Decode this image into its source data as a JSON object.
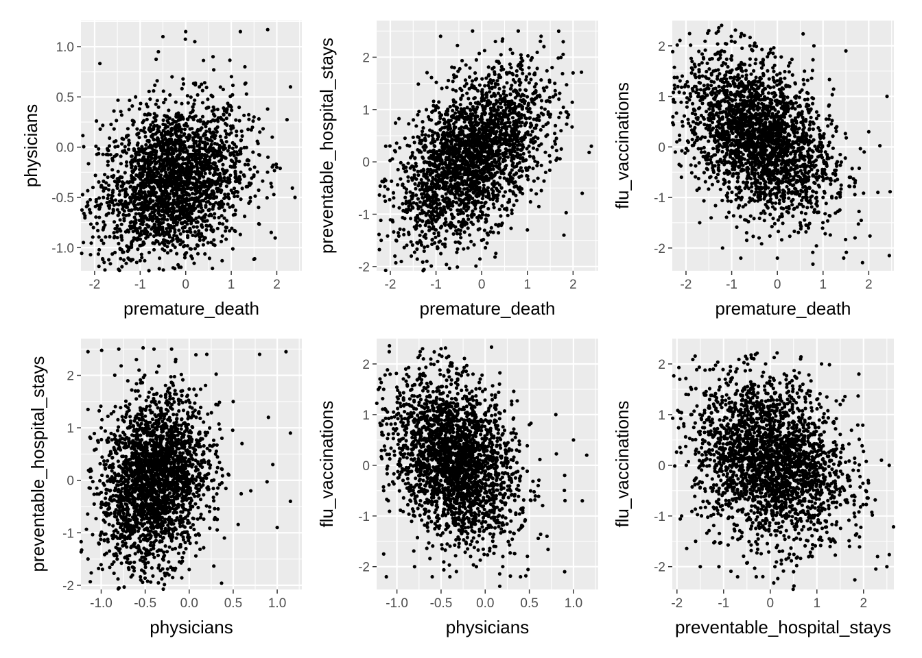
{
  "chart_data": [
    {
      "type": "scatter",
      "title": "",
      "xlabel": "premature_death",
      "ylabel": "physicians",
      "xlim": [
        -2.3,
        2.55
      ],
      "ylim": [
        -1.23,
        1.26
      ],
      "xticks": [
        -2,
        -1,
        0,
        1,
        2
      ],
      "xtick_labels": [
        "-2",
        "-1",
        "0",
        "1",
        "2"
      ],
      "yticks": [
        -1.0,
        -0.5,
        0.0,
        0.5,
        1.0
      ],
      "ytick_labels": [
        "-1.0",
        "-0.5",
        "0.0",
        "0.5",
        "1.0"
      ],
      "grid": true,
      "point_color": "#000000",
      "points": [
        [
          -2.15,
          -0.58
        ],
        [
          -1.8,
          -0.8
        ],
        [
          -1.6,
          -0.45
        ],
        [
          -1.4,
          -0.3
        ],
        [
          -1.3,
          0.1
        ],
        [
          -1.2,
          -1.13
        ],
        [
          -1.0,
          -1.13
        ],
        [
          -0.9,
          -1.13
        ],
        [
          -0.6,
          0.95
        ],
        [
          -0.5,
          1.1
        ],
        [
          -0.3,
          0.7
        ],
        [
          0.0,
          1.15
        ],
        [
          0.2,
          1.05
        ],
        [
          0.4,
          -0.2
        ],
        [
          0.6,
          0.9
        ],
        [
          0.8,
          -1.13
        ],
        [
          1.0,
          0.4
        ],
        [
          1.2,
          1.15
        ],
        [
          1.5,
          0.3
        ],
        [
          1.8,
          1.17
        ],
        [
          2.0,
          -0.2
        ],
        [
          2.3,
          0.6
        ],
        [
          2.4,
          -0.5
        ],
        [
          -1.1,
          0.5
        ],
        [
          -0.8,
          -0.6
        ],
        [
          -0.4,
          -0.4
        ],
        [
          -0.2,
          0.3
        ],
        [
          0.1,
          -0.7
        ],
        [
          0.3,
          0.6
        ],
        [
          0.5,
          -0.5
        ],
        [
          0.7,
          0.2
        ],
        [
          0.9,
          -0.8
        ],
        [
          1.1,
          -0.3
        ],
        [
          1.3,
          0.8
        ],
        [
          1.6,
          -0.6
        ],
        [
          -1.5,
          -0.9
        ],
        [
          -0.7,
          0.2
        ],
        [
          0.0,
          -0.3
        ],
        [
          0.8,
          -0.1
        ],
        [
          1.9,
          0.1
        ]
      ]
    },
    {
      "type": "scatter",
      "title": "",
      "xlabel": "premature_death",
      "ylabel": "preventable_hospital_stays",
      "xlim": [
        -2.3,
        2.55
      ],
      "ylim": [
        -2.08,
        2.7
      ],
      "xticks": [
        -2,
        -1,
        0,
        1,
        2
      ],
      "xtick_labels": [
        "-2",
        "-1",
        "0",
        "1",
        "2"
      ],
      "yticks": [
        -2,
        -1,
        0,
        1,
        2
      ],
      "ytick_labels": [
        "-2",
        "-1",
        "0",
        "1",
        "2"
      ],
      "grid": true,
      "point_color": "#000000",
      "points": [
        [
          -2.2,
          -1.5
        ],
        [
          -2.1,
          0.3
        ],
        [
          -1.9,
          -1.8
        ],
        [
          -1.6,
          -0.9
        ],
        [
          -1.4,
          0.9
        ],
        [
          -1.2,
          -1.9
        ],
        [
          -1.0,
          -1.3
        ],
        [
          -0.9,
          2.4
        ],
        [
          -0.6,
          1.8
        ],
        [
          -0.4,
          -1.1
        ],
        [
          -0.2,
          2.5
        ],
        [
          0.0,
          -1.5
        ],
        [
          0.3,
          2.3
        ],
        [
          0.5,
          -0.9
        ],
        [
          0.8,
          2.5
        ],
        [
          1.0,
          -1.3
        ],
        [
          1.3,
          2.4
        ],
        [
          1.5,
          0.0
        ],
        [
          1.8,
          -1.4
        ],
        [
          2.0,
          1.7
        ],
        [
          2.2,
          -0.6
        ],
        [
          2.4,
          0.3
        ],
        [
          -1.3,
          -0.4
        ],
        [
          -0.8,
          -0.2
        ],
        [
          -0.3,
          0.4
        ],
        [
          0.2,
          0.6
        ],
        [
          0.6,
          0.9
        ],
        [
          1.1,
          1.2
        ],
        [
          1.6,
          1.5
        ],
        [
          -0.5,
          0.1
        ],
        [
          0.4,
          -0.3
        ],
        [
          0.9,
          0.3
        ],
        [
          1.4,
          -0.2
        ],
        [
          -1.1,
          0.2
        ],
        [
          0.1,
          1.6
        ],
        [
          0.7,
          -0.6
        ],
        [
          1.2,
          0.7
        ],
        [
          -0.7,
          -0.8
        ],
        [
          0.0,
          0.0
        ],
        [
          1.9,
          0.9
        ]
      ]
    },
    {
      "type": "scatter",
      "title": "",
      "xlabel": "premature_death",
      "ylabel": "flu_vaccinations",
      "xlim": [
        -2.3,
        2.55
      ],
      "ylim": [
        -2.45,
        2.5
      ],
      "xticks": [
        -2,
        -1,
        0,
        1,
        2
      ],
      "xtick_labels": [
        "-2",
        "-1",
        "0",
        "1",
        "2"
      ],
      "yticks": [
        -2,
        -1,
        0,
        1,
        2
      ],
      "ytick_labels": [
        "-2",
        "-1",
        "0",
        "1",
        "2"
      ],
      "grid": true,
      "point_color": "#000000",
      "points": [
        [
          -2.2,
          0.1
        ],
        [
          -2.1,
          -0.6
        ],
        [
          -1.9,
          1.0
        ],
        [
          -1.7,
          -1.5
        ],
        [
          -1.5,
          2.3
        ],
        [
          -1.4,
          1.5
        ],
        [
          -1.2,
          -2.0
        ],
        [
          -1.0,
          1.8
        ],
        [
          -0.8,
          -2.2
        ],
        [
          -0.6,
          2.0
        ],
        [
          -0.4,
          -1.8
        ],
        [
          -0.2,
          1.2
        ],
        [
          0.0,
          -2.2
        ],
        [
          0.3,
          0.9
        ],
        [
          0.5,
          -1.5
        ],
        [
          0.8,
          2.0
        ],
        [
          1.0,
          -1.0
        ],
        [
          1.3,
          0.4
        ],
        [
          1.5,
          1.9
        ],
        [
          1.7,
          -1.8
        ],
        [
          2.0,
          0.3
        ],
        [
          2.2,
          -0.9
        ],
        [
          2.4,
          1.0
        ],
        [
          2.45,
          -2.15
        ],
        [
          -1.3,
          0.5
        ],
        [
          -0.9,
          0.2
        ],
        [
          -0.5,
          -0.3
        ],
        [
          0.1,
          0.1
        ],
        [
          0.6,
          -0.4
        ],
        [
          1.1,
          -0.2
        ],
        [
          1.6,
          -0.6
        ],
        [
          -1.1,
          1.1
        ],
        [
          -0.7,
          0.8
        ],
        [
          0.4,
          0.4
        ],
        [
          0.9,
          0.0
        ],
        [
          1.4,
          -0.3
        ],
        [
          -0.3,
          -0.9
        ],
        [
          0.2,
          -1.2
        ],
        [
          0.7,
          -0.8
        ],
        [
          1.9,
          -0.1
        ]
      ]
    },
    {
      "type": "scatter",
      "title": "",
      "xlabel": "physicians",
      "ylabel": "preventable_hospital_stays",
      "xlim": [
        -1.23,
        1.28
      ],
      "ylim": [
        -2.08,
        2.7
      ],
      "xticks": [
        -1.0,
        -0.5,
        0.0,
        0.5,
        1.0
      ],
      "xtick_labels": [
        "-1.0",
        "-0.5",
        "0.0",
        "0.5",
        "1.0"
      ],
      "yticks": [
        -2,
        -1,
        0,
        1,
        2
      ],
      "ytick_labels": [
        "-2",
        "-1",
        "0",
        "1",
        "2"
      ],
      "grid": true,
      "point_color": "#000000",
      "points": [
        [
          -1.15,
          2.45
        ],
        [
          -1.15,
          1.35
        ],
        [
          -1.15,
          -1.5
        ],
        [
          -1.12,
          0.8
        ],
        [
          -1.0,
          1.0
        ],
        [
          -0.9,
          -0.2
        ],
        [
          -0.8,
          2.5
        ],
        [
          -0.7,
          -1.5
        ],
        [
          -0.6,
          2.3
        ],
        [
          -0.55,
          -1.9
        ],
        [
          -0.5,
          -1.6
        ],
        [
          -0.4,
          2.5
        ],
        [
          -0.3,
          -1.5
        ],
        [
          -0.2,
          2.5
        ],
        [
          0.0,
          -1.7
        ],
        [
          0.2,
          2.4
        ],
        [
          0.4,
          -1.1
        ],
        [
          0.5,
          1.5
        ],
        [
          0.7,
          -0.2
        ],
        [
          0.8,
          2.4
        ],
        [
          0.9,
          1.2
        ],
        [
          1.0,
          -0.9
        ],
        [
          1.1,
          2.45
        ],
        [
          1.15,
          0.9
        ],
        [
          1.15,
          -0.4
        ],
        [
          -0.6,
          0.0
        ],
        [
          -0.5,
          0.3
        ],
        [
          -0.4,
          -0.4
        ],
        [
          -0.3,
          0.6
        ],
        [
          -0.2,
          -0.1
        ],
        [
          -0.1,
          0.9
        ],
        [
          0.1,
          0.2
        ],
        [
          0.3,
          0.5
        ],
        [
          0.6,
          0.7
        ],
        [
          -0.45,
          -0.8
        ],
        [
          -0.35,
          1.1
        ],
        [
          -0.25,
          -0.6
        ],
        [
          0.0,
          0.4
        ],
        [
          0.45,
          0.1
        ],
        [
          0.95,
          0.3
        ]
      ]
    },
    {
      "type": "scatter",
      "title": "",
      "xlabel": "physicians",
      "ylabel": "flu_vaccinations",
      "xlim": [
        -1.23,
        1.28
      ],
      "ylim": [
        -2.45,
        2.5
      ],
      "xticks": [
        -1.0,
        -0.5,
        0.0,
        0.5,
        1.0
      ],
      "xtick_labels": [
        "-1.0",
        "-0.5",
        "0.0",
        "0.5",
        "1.0"
      ],
      "yticks": [
        -2,
        -1,
        0,
        1,
        2
      ],
      "ytick_labels": [
        "-2",
        "-1",
        "0",
        "1",
        "2"
      ],
      "grid": true,
      "point_color": "#000000",
      "points": [
        [
          -1.15,
          1.5
        ],
        [
          -1.15,
          -0.5
        ],
        [
          -1.15,
          -1.75
        ],
        [
          -1.12,
          -2.2
        ],
        [
          -1.0,
          1.0
        ],
        [
          -0.9,
          1.9
        ],
        [
          -0.8,
          -2.0
        ],
        [
          -0.7,
          2.1
        ],
        [
          -0.6,
          -2.2
        ],
        [
          -0.5,
          2.3
        ],
        [
          -0.4,
          -2.2
        ],
        [
          -0.3,
          1.8
        ],
        [
          -0.1,
          -2.0
        ],
        [
          0.0,
          1.5
        ],
        [
          0.2,
          -1.8
        ],
        [
          0.3,
          1.2
        ],
        [
          0.4,
          -2.2
        ],
        [
          0.5,
          0.8
        ],
        [
          0.7,
          -1.4
        ],
        [
          0.8,
          1.0
        ],
        [
          0.9,
          -2.1
        ],
        [
          1.0,
          0.5
        ],
        [
          1.1,
          -0.7
        ],
        [
          1.15,
          0.2
        ],
        [
          -0.7,
          0.5
        ],
        [
          -0.6,
          -0.3
        ],
        [
          -0.5,
          0.2
        ],
        [
          -0.4,
          -0.8
        ],
        [
          -0.3,
          0.6
        ],
        [
          -0.2,
          -0.5
        ],
        [
          0.0,
          0.0
        ],
        [
          0.1,
          -0.9
        ],
        [
          0.3,
          0.3
        ],
        [
          0.6,
          -0.4
        ],
        [
          0.9,
          -0.2
        ],
        [
          -0.8,
          -1.0
        ],
        [
          -0.55,
          0.9
        ],
        [
          -0.25,
          -1.3
        ],
        [
          0.15,
          0.7
        ],
        [
          0.45,
          -1.1
        ]
      ]
    },
    {
      "type": "scatter",
      "title": "",
      "xlabel": "preventable_hospital_stays",
      "ylabel": "flu_vaccinations",
      "xlim": [
        -2.1,
        2.65
      ],
      "ylim": [
        -2.45,
        2.5
      ],
      "xticks": [
        -2,
        -1,
        0,
        1,
        2
      ],
      "xtick_labels": [
        "-2",
        "-1",
        "0",
        "1",
        "2"
      ],
      "yticks": [
        -2,
        -1,
        0,
        1,
        2
      ],
      "ytick_labels": [
        "-2",
        "-1",
        "0",
        "1",
        "2"
      ],
      "grid": true,
      "point_color": "#000000",
      "points": [
        [
          -1.9,
          -1.0
        ],
        [
          -1.8,
          0.0
        ],
        [
          -1.7,
          1.0
        ],
        [
          -1.6,
          -1.5
        ],
        [
          -1.5,
          -2.0
        ],
        [
          -1.3,
          1.3
        ],
        [
          -1.1,
          -2.0
        ],
        [
          -0.9,
          1.8
        ],
        [
          -0.7,
          -2.2
        ],
        [
          -0.5,
          2.1
        ],
        [
          -0.3,
          -2.2
        ],
        [
          -0.1,
          2.0
        ],
        [
          0.1,
          -2.0
        ],
        [
          0.3,
          1.8
        ],
        [
          0.5,
          -2.1
        ],
        [
          0.7,
          1.6
        ],
        [
          0.9,
          -1.8
        ],
        [
          1.1,
          2.0
        ],
        [
          1.3,
          -1.5
        ],
        [
          1.5,
          1.2
        ],
        [
          1.7,
          -1.6
        ],
        [
          1.9,
          1.8
        ],
        [
          2.1,
          -0.3
        ],
        [
          2.3,
          -1.8
        ],
        [
          2.5,
          -2.0
        ],
        [
          2.55,
          0.0
        ],
        [
          -1.0,
          0.3
        ],
        [
          -0.6,
          -0.4
        ],
        [
          -0.2,
          0.5
        ],
        [
          0.2,
          -0.2
        ],
        [
          0.6,
          0.4
        ],
        [
          1.0,
          -0.5
        ],
        [
          1.4,
          0.2
        ],
        [
          1.8,
          -0.7
        ],
        [
          -0.8,
          1.0
        ],
        [
          -0.4,
          -1.2
        ],
        [
          0.0,
          0.9
        ],
        [
          0.4,
          -1.0
        ],
        [
          0.8,
          0.8
        ],
        [
          1.2,
          -1.1
        ]
      ]
    }
  ]
}
